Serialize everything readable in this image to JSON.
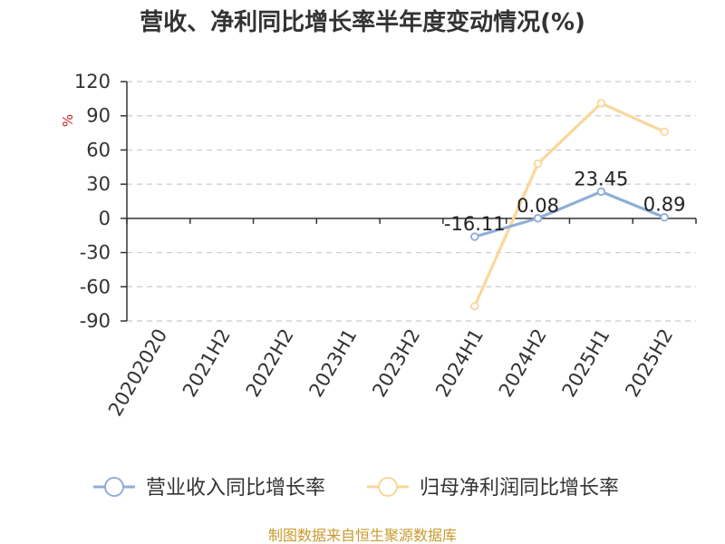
{
  "chart_data": {
    "type": "line",
    "title": "营收、净利同比增长率半年度变动情况(%)",
    "ylabel": "%",
    "ylim": [
      -90,
      120
    ],
    "yticks": [
      120,
      90,
      60,
      30,
      0,
      -30,
      -60,
      -90
    ],
    "categories": [
      "20202020",
      "2021H2",
      "2022H2",
      "2023H1",
      "2023H2",
      "2024H1",
      "2024H2",
      "2025H1",
      "2025H2"
    ],
    "grid": true,
    "legend_position": "bottom",
    "series": [
      {
        "name": "营业收入同比增长率",
        "color": "#8fafd8",
        "values": [
          null,
          null,
          null,
          null,
          null,
          -16.11,
          0.08,
          23.45,
          0.89
        ],
        "labels": [
          null,
          null,
          null,
          null,
          null,
          "-16.11",
          "0.08",
          "23.45",
          "0.89"
        ]
      },
      {
        "name": "归母净利润同比增长率",
        "color": "#fad79a",
        "values": [
          null,
          null,
          null,
          null,
          null,
          -77,
          48,
          101,
          76
        ],
        "labels": [
          null,
          null,
          null,
          null,
          null,
          null,
          null,
          null,
          null
        ]
      }
    ]
  },
  "source": "制图数据来自恒生聚源数据库",
  "colors": {
    "unit": "#cc2222",
    "source": "#c89a2e",
    "axis": "#333333",
    "grid": "#cccccc"
  }
}
